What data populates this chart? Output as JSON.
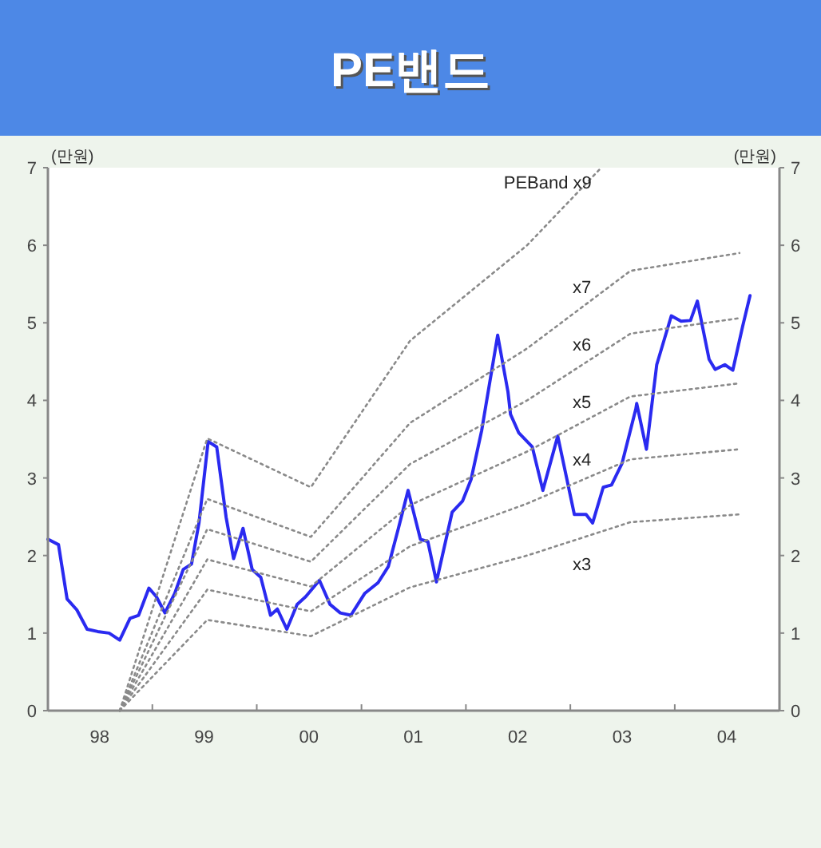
{
  "chart_data": {
    "type": "line",
    "title": "PE밴드",
    "ylabel": "(만원)",
    "y2label": "(만원)",
    "xlim": [
      "1998-01-01",
      "2005-01-01"
    ],
    "xticks": [
      {
        "value": "1998-07-01",
        "label": "98"
      },
      {
        "value": "1999-01-01",
        "label": null
      },
      {
        "value": "1999-07-01",
        "label": "99"
      },
      {
        "value": "2000-01-01",
        "label": null
      },
      {
        "value": "2000-07-01",
        "label": "00"
      },
      {
        "value": "2001-01-01",
        "label": null
      },
      {
        "value": "2001-07-01",
        "label": "01"
      },
      {
        "value": "2002-01-01",
        "label": null
      },
      {
        "value": "2002-07-01",
        "label": "02"
      },
      {
        "value": "2003-01-01",
        "label": null
      },
      {
        "value": "2003-07-01",
        "label": "03"
      },
      {
        "value": "2004-01-01",
        "label": null
      },
      {
        "value": "2004-07-01",
        "label": "04"
      }
    ],
    "ylim": [
      0,
      7
    ],
    "yticks": [
      0,
      1,
      2,
      3,
      4,
      5,
      6,
      7
    ],
    "y2lim": [
      0,
      7
    ],
    "y2ticks": [
      0,
      1,
      2,
      3,
      4,
      5,
      6,
      7
    ],
    "marker": "none",
    "series": [
      {
        "color": "#2a2af0",
        "line_style": "solid",
        "x": [
          "1998-01-01",
          "1998-02-07",
          "1998-03-09",
          "1998-04-12",
          "1998-05-18",
          "1998-06-24",
          "1998-08-03",
          "1998-09-09",
          "1998-10-15",
          "1998-11-14",
          "1998-12-20",
          "1999-01-15",
          "1999-02-14",
          "1999-03-20",
          "1999-04-19",
          "1999-05-18",
          "1999-06-13",
          "1999-07-15",
          "1999-08-14",
          "1999-09-16",
          "1999-10-12",
          "1999-11-14",
          "1999-12-16",
          "2000-01-15",
          "2000-02-18",
          "2000-03-13",
          "2000-04-15",
          "2000-05-21",
          "2000-06-20",
          "2000-08-07",
          "2000-09-13",
          "2000-10-19",
          "2000-11-25",
          "2001-01-12",
          "2001-02-28",
          "2001-04-05",
          "2001-05-10",
          "2001-06-13",
          "2001-07-26",
          "2001-08-21",
          "2001-09-20",
          "2001-11-14",
          "2001-12-20",
          "2002-01-19",
          "2002-02-25",
          "2002-04-22",
          "2002-05-28",
          "2002-06-06",
          "2002-07-05",
          "2002-08-21",
          "2002-09-27",
          "2002-11-18",
          "2003-01-15",
          "2003-02-25",
          "2003-03-20",
          "2003-04-26",
          "2003-05-25",
          "2003-07-01",
          "2003-08-18",
          "2003-08-21",
          "2003-09-24",
          "2003-10-30",
          "2003-12-20",
          "2004-01-23",
          "2004-02-25",
          "2004-03-20",
          "2004-04-30",
          "2004-05-21",
          "2004-06-24",
          "2004-07-22",
          "2004-08-25",
          "2004-09-20"
        ],
        "values": [
          2.21,
          2.14,
          1.44,
          1.3,
          1.05,
          1.02,
          1.0,
          0.91,
          1.19,
          1.23,
          1.58,
          1.47,
          1.26,
          1.51,
          1.82,
          1.89,
          2.42,
          3.47,
          3.4,
          2.49,
          1.96,
          2.35,
          1.82,
          1.72,
          1.23,
          1.31,
          1.05,
          1.37,
          1.47,
          1.68,
          1.37,
          1.26,
          1.23,
          1.51,
          1.65,
          1.86,
          2.35,
          2.84,
          2.21,
          2.18,
          1.66,
          2.56,
          2.7,
          2.98,
          3.61,
          4.84,
          4.11,
          3.82,
          3.58,
          3.4,
          2.84,
          3.54,
          2.53,
          2.53,
          2.42,
          2.88,
          2.91,
          3.19,
          3.89,
          3.96,
          3.37,
          4.46,
          5.09,
          5.02,
          5.03,
          5.28,
          4.53,
          4.4,
          4.46,
          4.39,
          4.95,
          5.35
        ]
      },
      {
        "name": "x3",
        "color": "#8a8a8a",
        "line_style": "dotted",
        "x": [
          "1998-09-09",
          "1999-07-12",
          "2000-07-08",
          "2001-06-20",
          "2002-08-03",
          "2003-07-30",
          "2004-08-14"
        ],
        "values": [
          0,
          1.17,
          0.96,
          1.59,
          2.0,
          2.43,
          2.53
        ]
      },
      {
        "name": "x4",
        "color": "#8a8a8a",
        "line_style": "dotted",
        "x": [
          "1998-09-09",
          "1999-07-12",
          "2000-07-08",
          "2001-06-20",
          "2002-08-03",
          "2003-07-30",
          "2004-08-14"
        ],
        "values": [
          0,
          1.56,
          1.28,
          2.12,
          2.67,
          3.24,
          3.37
        ]
      },
      {
        "name": "x5",
        "color": "#8a8a8a",
        "line_style": "dotted",
        "x": [
          "1998-09-09",
          "1999-07-12",
          "2000-07-08",
          "2001-06-20",
          "2002-08-03",
          "2003-07-30",
          "2004-08-14"
        ],
        "values": [
          0,
          1.95,
          1.6,
          2.65,
          3.34,
          4.05,
          4.22
        ]
      },
      {
        "name": "x6",
        "color": "#8a8a8a",
        "line_style": "dotted",
        "x": [
          "1998-09-09",
          "1999-07-12",
          "2000-07-08",
          "2001-06-20",
          "2002-08-03",
          "2003-07-30",
          "2004-08-14"
        ],
        "values": [
          0,
          2.34,
          1.92,
          3.18,
          4.0,
          4.86,
          5.06
        ]
      },
      {
        "name": "x7",
        "color": "#8a8a8a",
        "line_style": "dotted",
        "x": [
          "1998-09-09",
          "1999-07-12",
          "2000-07-08",
          "2001-06-20",
          "2002-08-03",
          "2003-07-30",
          "2004-08-14"
        ],
        "values": [
          0,
          2.73,
          2.24,
          3.71,
          4.67,
          5.67,
          5.9
        ]
      },
      {
        "name": "PEBand x9",
        "color": "#8a8a8a",
        "line_style": "dotted",
        "x": [
          "1998-09-09",
          "1999-07-12",
          "2000-07-08",
          "2001-06-20",
          "2002-08-03",
          "2003-04-19"
        ],
        "values": [
          0,
          3.51,
          2.88,
          4.77,
          6.0,
          7.0
        ]
      }
    ]
  }
}
